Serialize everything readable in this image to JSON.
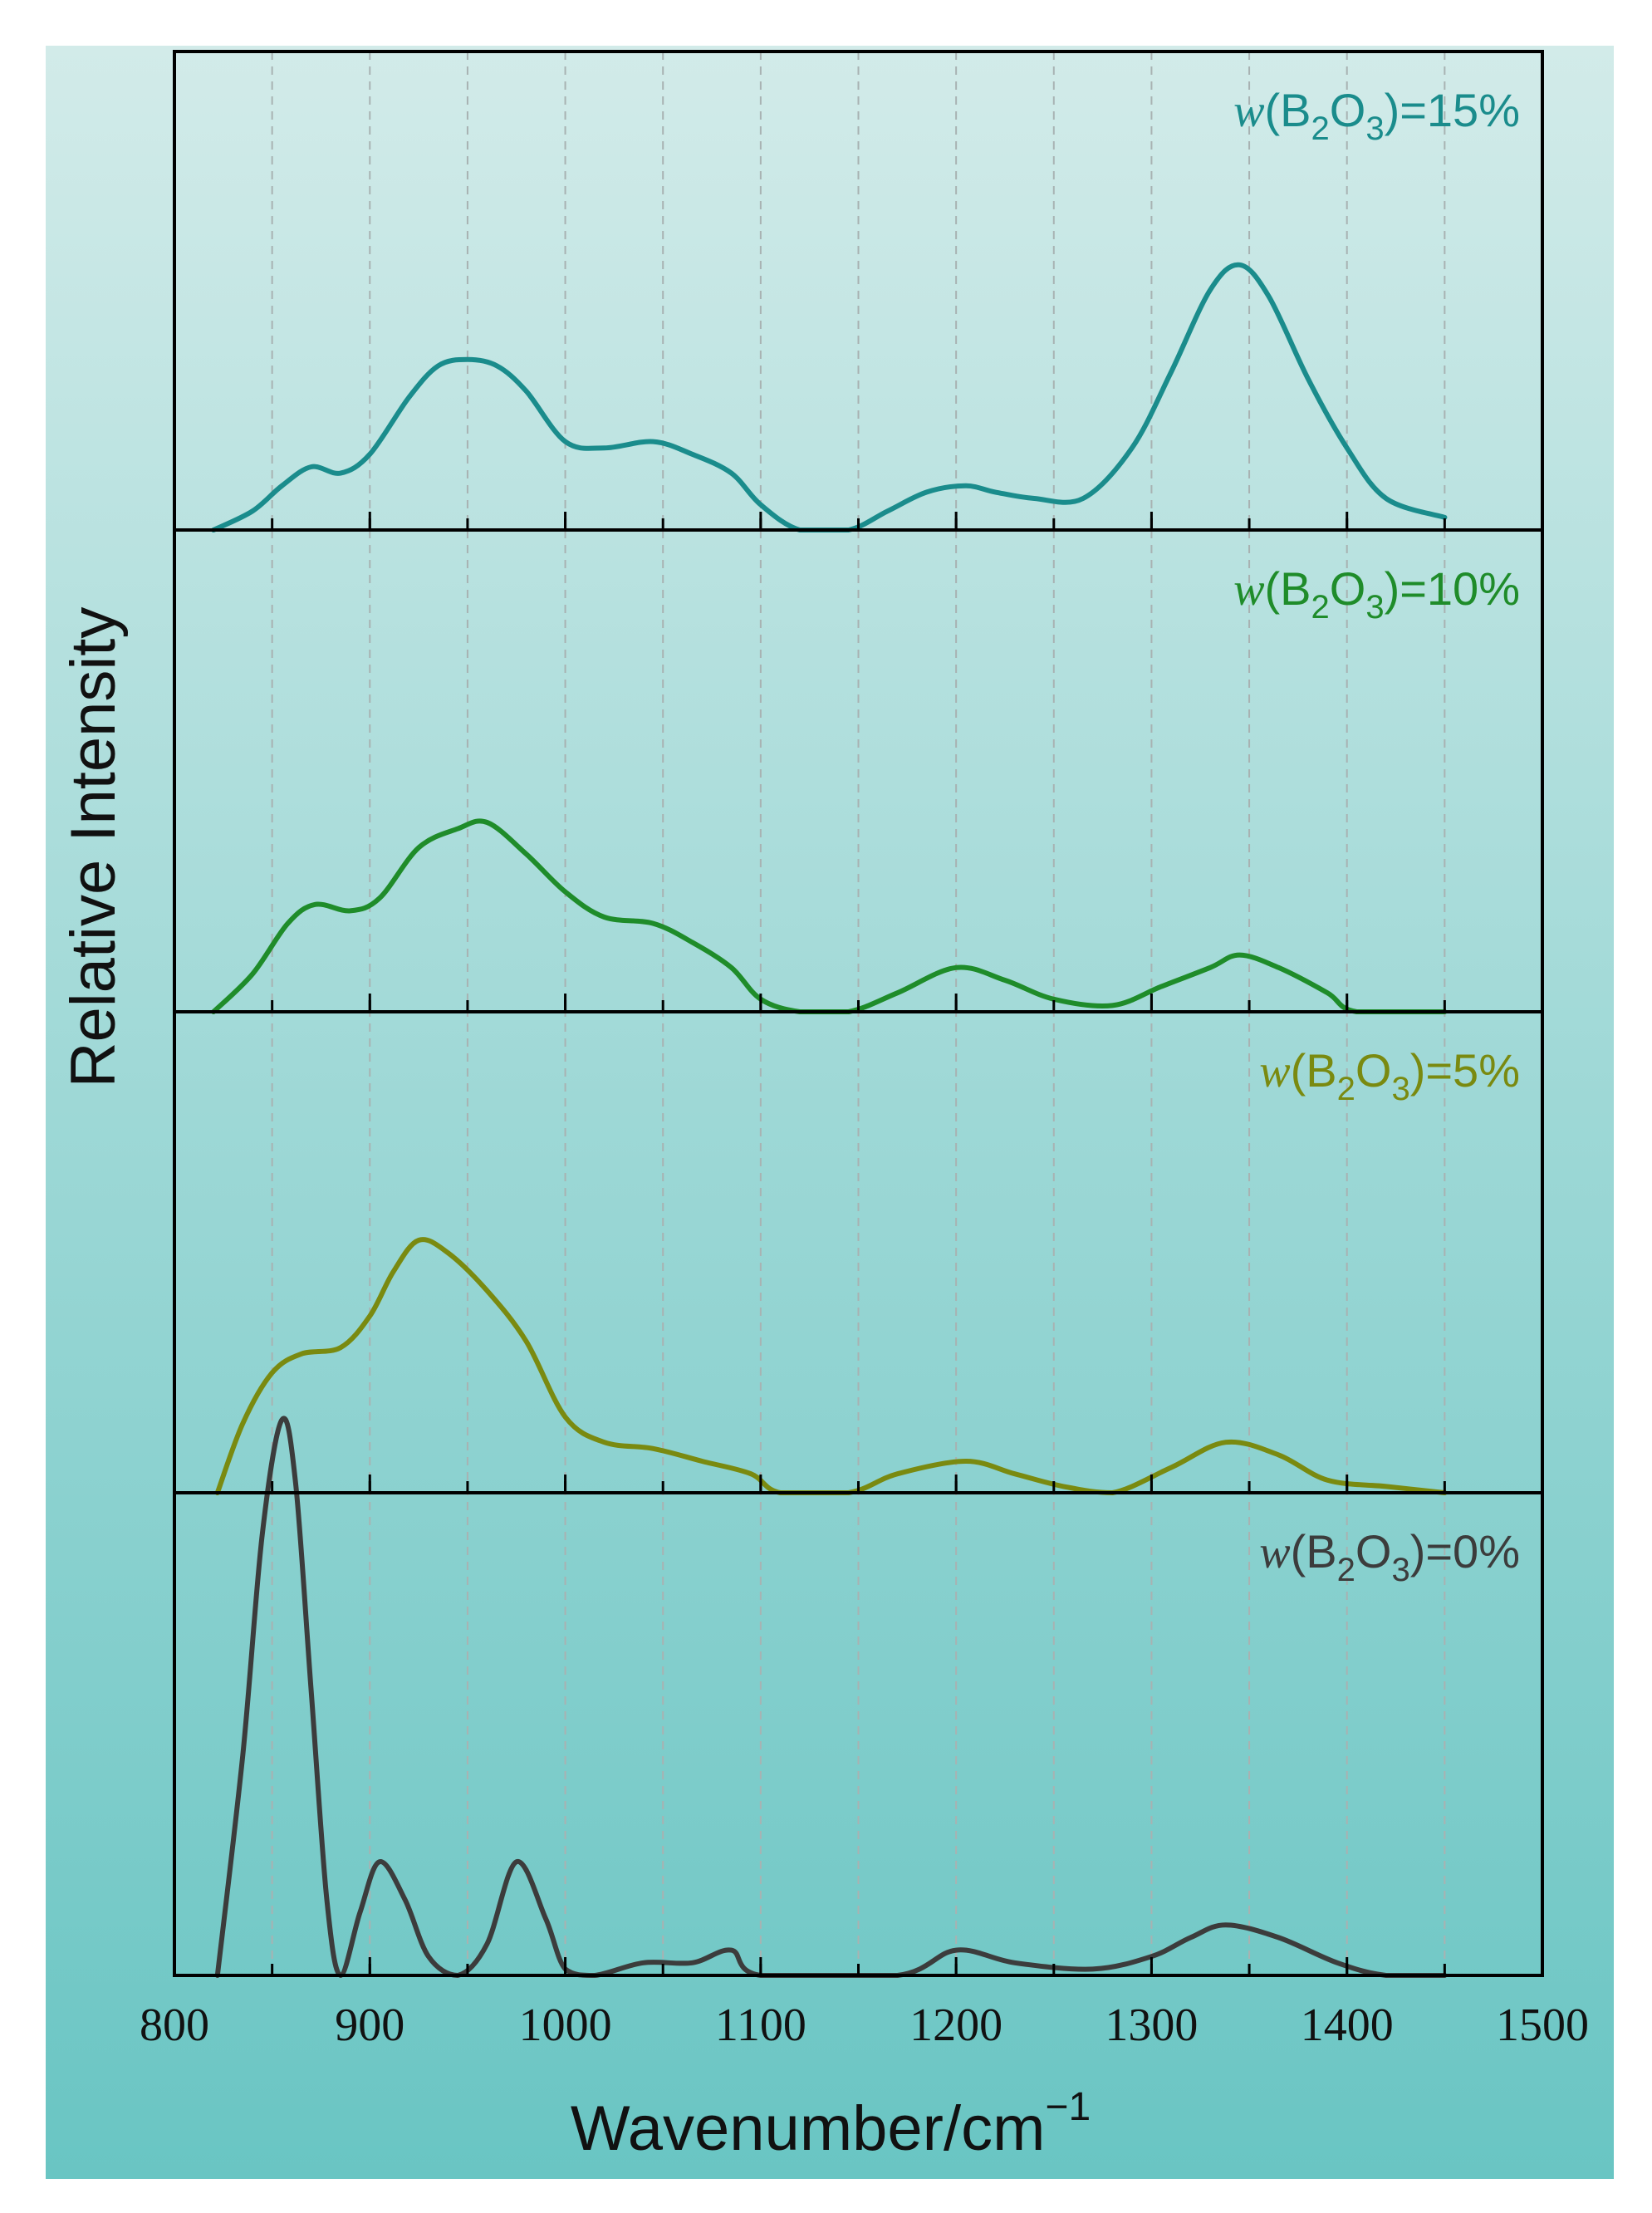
{
  "colors": {
    "background_top": "#d2ebe9",
    "background_bottom": "#69c5c3",
    "frame": "#000000",
    "grid": "#a8b2b2"
  },
  "chart_data": {
    "type": "line",
    "layout": "stacked-panels",
    "xlabel": "Wavenumber/cm",
    "xlabel_superscript": "−1",
    "ylabel": "Relative Intensity",
    "xlim": [
      800,
      1500
    ],
    "x_ticks": [
      "800",
      "900",
      "1000",
      "1100",
      "1200",
      "1300",
      "1400",
      "1500"
    ],
    "x_tick_values": [
      800,
      900,
      1000,
      1100,
      1200,
      1300,
      1400,
      1500
    ],
    "grid_x_values": [
      850,
      900,
      950,
      1000,
      1050,
      1100,
      1150,
      1200,
      1250,
      1300,
      1350,
      1400,
      1450
    ],
    "y_scale_max": 1.0,
    "panels": [
      {
        "label": {
          "italic": "w",
          "open": "(B",
          "sub1": "2",
          "mid": "O",
          "sub2": "3",
          "close": ")=15%"
        },
        "color": "#1a8c8c",
        "points": [
          [
            820,
            0.0
          ],
          [
            840,
            0.03
          ],
          [
            855,
            0.07
          ],
          [
            870,
            0.1
          ],
          [
            885,
            0.09
          ],
          [
            900,
            0.12
          ],
          [
            920,
            0.21
          ],
          [
            935,
            0.26
          ],
          [
            950,
            0.27
          ],
          [
            965,
            0.26
          ],
          [
            980,
            0.22
          ],
          [
            1000,
            0.14
          ],
          [
            1020,
            0.13
          ],
          [
            1045,
            0.14
          ],
          [
            1065,
            0.12
          ],
          [
            1085,
            0.09
          ],
          [
            1100,
            0.04
          ],
          [
            1120,
            0.0
          ],
          [
            1145,
            0.0
          ],
          [
            1165,
            0.03
          ],
          [
            1185,
            0.06
          ],
          [
            1205,
            0.07
          ],
          [
            1220,
            0.06
          ],
          [
            1240,
            0.05
          ],
          [
            1265,
            0.05
          ],
          [
            1290,
            0.13
          ],
          [
            1310,
            0.25
          ],
          [
            1330,
            0.38
          ],
          [
            1345,
            0.42
          ],
          [
            1360,
            0.37
          ],
          [
            1380,
            0.24
          ],
          [
            1400,
            0.13
          ],
          [
            1420,
            0.05
          ],
          [
            1450,
            0.02
          ]
        ]
      },
      {
        "label": {
          "italic": "w",
          "open": "(B",
          "sub1": "2",
          "mid": "O",
          "sub2": "3",
          "close": ")=10%"
        },
        "color": "#1f8c2a",
        "points": [
          [
            820,
            0.0
          ],
          [
            840,
            0.06
          ],
          [
            858,
            0.14
          ],
          [
            872,
            0.17
          ],
          [
            890,
            0.16
          ],
          [
            905,
            0.18
          ],
          [
            925,
            0.26
          ],
          [
            945,
            0.29
          ],
          [
            960,
            0.3
          ],
          [
            980,
            0.25
          ],
          [
            1000,
            0.19
          ],
          [
            1020,
            0.15
          ],
          [
            1045,
            0.14
          ],
          [
            1065,
            0.11
          ],
          [
            1085,
            0.07
          ],
          [
            1100,
            0.02
          ],
          [
            1120,
            0.0
          ],
          [
            1145,
            0.0
          ],
          [
            1170,
            0.03
          ],
          [
            1200,
            0.07
          ],
          [
            1225,
            0.05
          ],
          [
            1250,
            0.02
          ],
          [
            1280,
            0.01
          ],
          [
            1305,
            0.04
          ],
          [
            1330,
            0.07
          ],
          [
            1345,
            0.09
          ],
          [
            1365,
            0.07
          ],
          [
            1390,
            0.03
          ],
          [
            1405,
            0.0
          ],
          [
            1450,
            0.0
          ]
        ]
      },
      {
        "label": {
          "italic": "w",
          "open": "(B",
          "sub1": "2",
          "mid": "O",
          "sub2": "3",
          "close": ")=5%"
        },
        "color": "#7a8a10",
        "points": [
          [
            822,
            0.0
          ],
          [
            835,
            0.11
          ],
          [
            850,
            0.19
          ],
          [
            865,
            0.22
          ],
          [
            885,
            0.23
          ],
          [
            900,
            0.28
          ],
          [
            912,
            0.35
          ],
          [
            925,
            0.4
          ],
          [
            940,
            0.38
          ],
          [
            960,
            0.32
          ],
          [
            980,
            0.24
          ],
          [
            1000,
            0.12
          ],
          [
            1020,
            0.08
          ],
          [
            1045,
            0.07
          ],
          [
            1070,
            0.05
          ],
          [
            1095,
            0.03
          ],
          [
            1110,
            0.0
          ],
          [
            1145,
            0.0
          ],
          [
            1170,
            0.03
          ],
          [
            1205,
            0.05
          ],
          [
            1230,
            0.03
          ],
          [
            1255,
            0.01
          ],
          [
            1280,
            0.0
          ],
          [
            1310,
            0.04
          ],
          [
            1338,
            0.08
          ],
          [
            1365,
            0.06
          ],
          [
            1390,
            0.02
          ],
          [
            1420,
            0.01
          ],
          [
            1450,
            0.0
          ]
        ]
      },
      {
        "label": {
          "italic": "w",
          "open": "(B",
          "sub1": "2",
          "mid": "O",
          "sub2": "3",
          "close": ")=0%"
        },
        "color": "#3c3c3c",
        "points": [
          [
            822,
            0.0
          ],
          [
            835,
            0.35
          ],
          [
            845,
            0.7
          ],
          [
            855,
            0.88
          ],
          [
            862,
            0.78
          ],
          [
            870,
            0.45
          ],
          [
            878,
            0.12
          ],
          [
            885,
            0.0
          ],
          [
            895,
            0.1
          ],
          [
            905,
            0.18
          ],
          [
            918,
            0.12
          ],
          [
            930,
            0.03
          ],
          [
            945,
            0.0
          ],
          [
            960,
            0.05
          ],
          [
            975,
            0.18
          ],
          [
            990,
            0.09
          ],
          [
            1000,
            0.01
          ],
          [
            1015,
            0.0
          ],
          [
            1040,
            0.02
          ],
          [
            1065,
            0.02
          ],
          [
            1085,
            0.04
          ],
          [
            1100,
            0.0
          ],
          [
            1170,
            0.0
          ],
          [
            1200,
            0.04
          ],
          [
            1230,
            0.02
          ],
          [
            1270,
            0.01
          ],
          [
            1300,
            0.03
          ],
          [
            1320,
            0.06
          ],
          [
            1338,
            0.08
          ],
          [
            1365,
            0.06
          ],
          [
            1395,
            0.02
          ],
          [
            1420,
            0.0
          ],
          [
            1450,
            0.0
          ]
        ]
      }
    ]
  }
}
